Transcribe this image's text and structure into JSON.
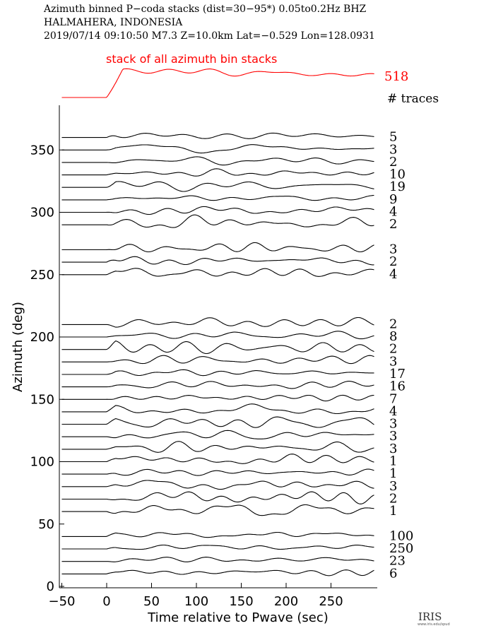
{
  "header": {
    "line1": "Azimuth binned P−coda stacks (dist=30−95*)  0.05to0.2Hz  BHZ",
    "line2": "HALMAHERA, INDONESIA",
    "line3": "2019/07/14  09:10:50  M7.3  Z=10.0km Lat=−0.529 Lon=128.0931"
  },
  "logo": {
    "text": "IRIS",
    "sub": "www.iris.edu/spud"
  },
  "colors": {
    "stack": "#ff0000",
    "traces": "#000000"
  },
  "chart_data": {
    "type": "line",
    "xlabel": "Time relative to Pwave (sec)",
    "ylabel": "Azimuth (deg)",
    "xlim": [
      -50,
      300
    ],
    "ylim": [
      0,
      375
    ],
    "xticks": [
      -50,
      0,
      50,
      100,
      150,
      200,
      250
    ],
    "yticks": [
      0,
      50,
      100,
      150,
      200,
      250,
      300,
      350
    ],
    "stack": {
      "title": "stack of all azimuth bin stacks",
      "count": "518",
      "onset_sec": 0
    },
    "traces_header": "# traces",
    "series": [
      {
        "azimuth": 360,
        "count": "5"
      },
      {
        "azimuth": 350,
        "count": "3"
      },
      {
        "azimuth": 340,
        "count": "2"
      },
      {
        "azimuth": 330,
        "count": "10"
      },
      {
        "azimuth": 320,
        "count": "19"
      },
      {
        "azimuth": 310,
        "count": "9"
      },
      {
        "azimuth": 300,
        "count": "4"
      },
      {
        "azimuth": 290,
        "count": "2"
      },
      {
        "azimuth": 270,
        "count": "3"
      },
      {
        "azimuth": 260,
        "count": "2"
      },
      {
        "azimuth": 250,
        "count": "4"
      },
      {
        "azimuth": 210,
        "count": "2"
      },
      {
        "azimuth": 200,
        "count": "8"
      },
      {
        "azimuth": 190,
        "count": "2"
      },
      {
        "azimuth": 180,
        "count": "3"
      },
      {
        "azimuth": 170,
        "count": "17"
      },
      {
        "azimuth": 160,
        "count": "16"
      },
      {
        "azimuth": 150,
        "count": "7"
      },
      {
        "azimuth": 140,
        "count": "4"
      },
      {
        "azimuth": 130,
        "count": "3"
      },
      {
        "azimuth": 120,
        "count": "3"
      },
      {
        "azimuth": 110,
        "count": "3"
      },
      {
        "azimuth": 100,
        "count": "1"
      },
      {
        "azimuth": 90,
        "count": "1"
      },
      {
        "azimuth": 80,
        "count": "3"
      },
      {
        "azimuth": 70,
        "count": "2"
      },
      {
        "azimuth": 60,
        "count": "1"
      },
      {
        "azimuth": 40,
        "count": "100"
      },
      {
        "azimuth": 30,
        "count": "250"
      },
      {
        "azimuth": 20,
        "count": "23"
      },
      {
        "azimuth": 10,
        "count": "6"
      }
    ]
  }
}
